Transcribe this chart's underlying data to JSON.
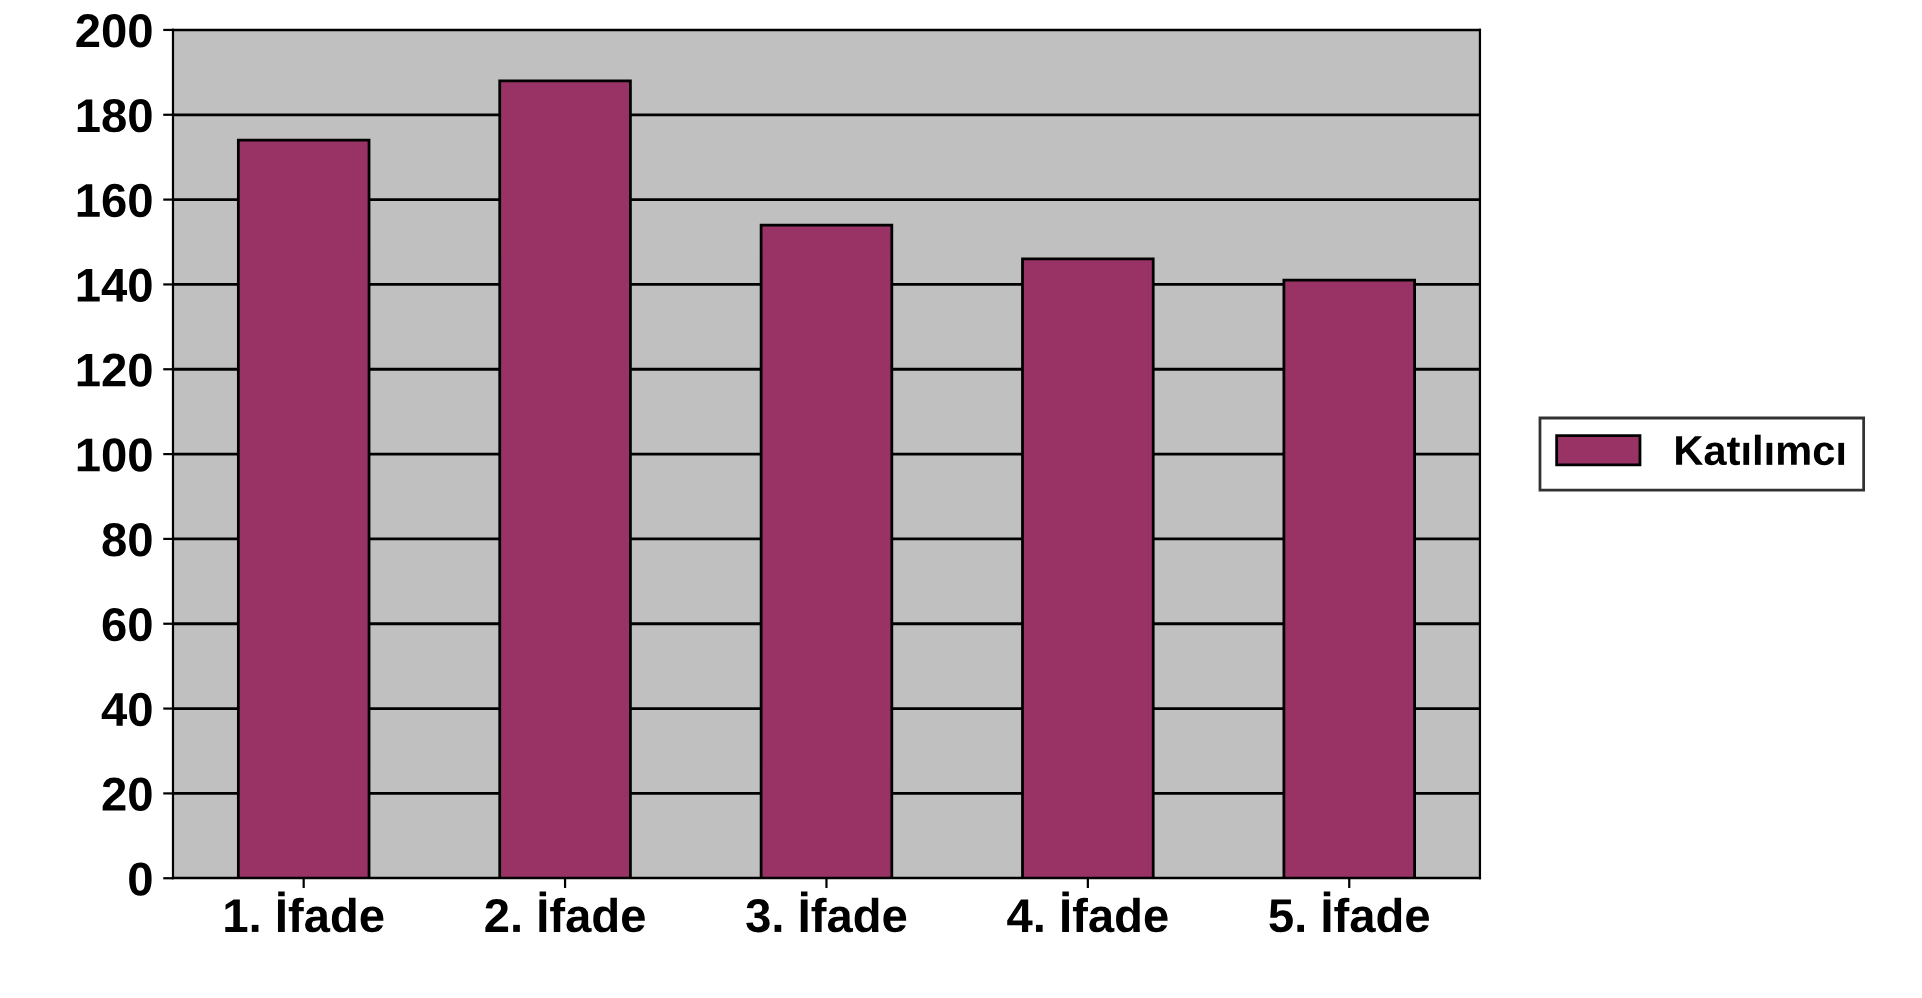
{
  "chart_data": {
    "type": "bar",
    "categories": [
      "1. İfade",
      "2. İfade",
      "3. İfade",
      "4. İfade",
      "5. İfade"
    ],
    "series": [
      {
        "name": "Katılımcı",
        "color": "#993366",
        "values": [
          174,
          188,
          154,
          146,
          141
        ]
      }
    ],
    "ylim": [
      0,
      200
    ],
    "yticks": [
      0,
      20,
      40,
      60,
      80,
      100,
      120,
      140,
      160,
      180,
      200
    ],
    "grid": "y",
    "legend": "right"
  }
}
